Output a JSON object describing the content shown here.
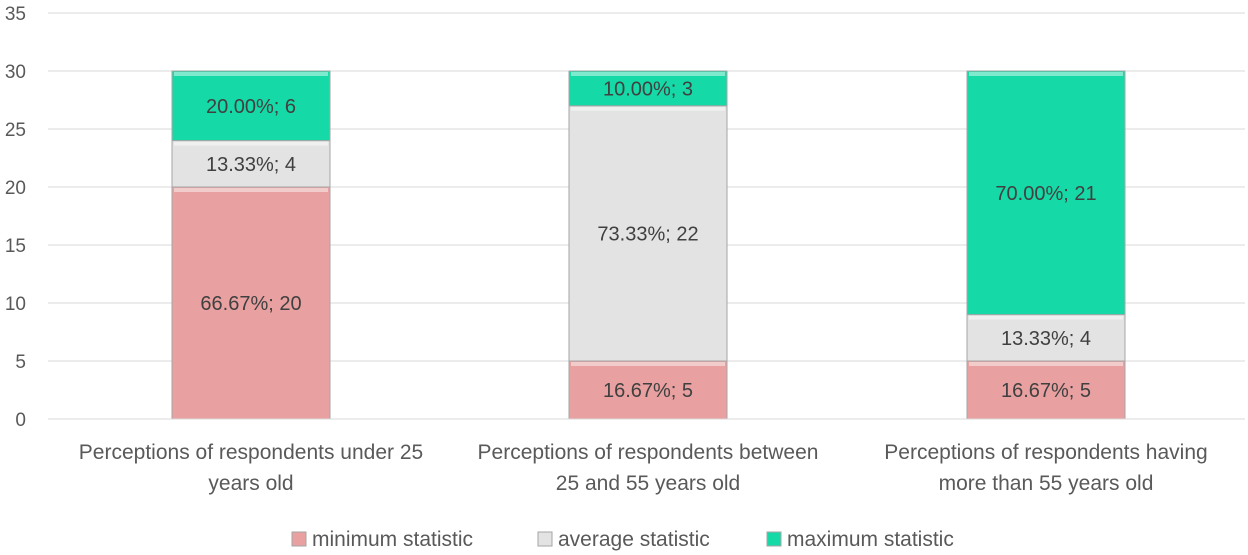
{
  "chart_data": {
    "type": "bar",
    "stacked": true,
    "categories": [
      [
        "Perceptions of respondents under 25",
        "years old"
      ],
      [
        "Perceptions of respondents between",
        "25 and 55 years old"
      ],
      [
        "Perceptions of respondents having",
        "more than 55 years old"
      ]
    ],
    "series": [
      {
        "name": "minimum statistic",
        "color": "#E8A0A0",
        "values": [
          20,
          5,
          5
        ],
        "labels": [
          "66.67%; 20",
          "16.67%; 5",
          "16.67%; 5"
        ]
      },
      {
        "name": "average statistic",
        "color": "#E3E3E3",
        "values": [
          4,
          22,
          4
        ],
        "labels": [
          "13.33%; 4",
          "73.33%; 22",
          "13.33%; 4"
        ]
      },
      {
        "name": "maximum statistic",
        "color": "#15D9A6",
        "values": [
          6,
          3,
          21
        ],
        "labels": [
          "20.00%; 6",
          "10.00%; 3",
          "70.00%; 21"
        ]
      }
    ],
    "yticks": [
      "0",
      "5",
      "10",
      "15",
      "20",
      "25",
      "30",
      "35"
    ],
    "ylim": [
      0,
      35
    ],
    "grid": true,
    "legend": "bottom"
  }
}
